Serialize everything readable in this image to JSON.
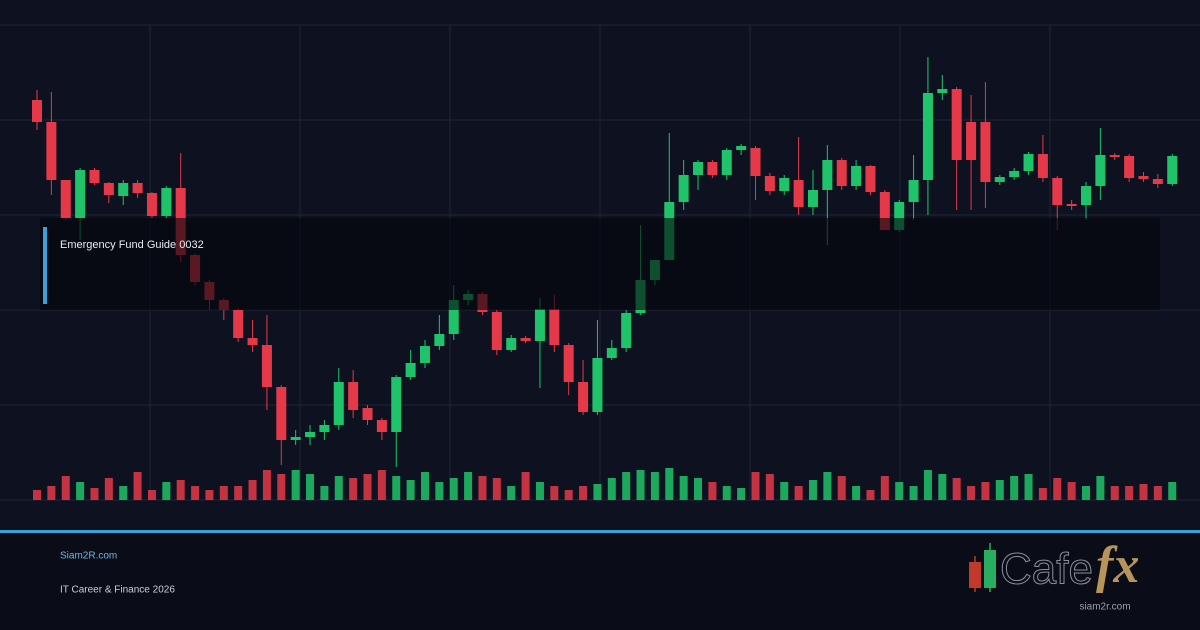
{
  "chart_data": {
    "type": "candlestick",
    "open": [
      400,
      378,
      320,
      282,
      330,
      317,
      304,
      317,
      307,
      284,
      312,
      245,
      218,
      200,
      190,
      162,
      155,
      113,
      60,
      63,
      68,
      75,
      118,
      92,
      80,
      68,
      123,
      137,
      154,
      166,
      200,
      206,
      188,
      150,
      162,
      159,
      191,
      155,
      118,
      88,
      142,
      152,
      187,
      220,
      240,
      298,
      325,
      338,
      325,
      350,
      352,
      324,
      309,
      320,
      293,
      310,
      340,
      314,
      334,
      308,
      270,
      298,
      320,
      407,
      411,
      378,
      378,
      318,
      323,
      329,
      346,
      322,
      296,
      295,
      314,
      345,
      344,
      324,
      321,
      316
    ],
    "high": [
      410,
      408,
      320,
      332,
      332,
      318,
      320,
      320,
      308,
      314,
      347,
      246,
      220,
      202,
      192,
      180,
      185,
      115,
      70,
      75,
      80,
      132,
      130,
      95,
      82,
      125,
      150,
      160,
      185,
      215,
      210,
      208,
      190,
      165,
      164,
      202,
      205,
      157,
      140,
      180,
      160,
      190,
      275,
      240,
      367,
      340,
      340,
      340,
      352,
      356,
      354,
      327,
      325,
      363,
      330,
      355,
      342,
      340,
      335,
      310,
      300,
      345,
      443,
      425,
      413,
      405,
      418,
      325,
      332,
      348,
      365,
      324,
      300,
      318,
      372,
      347,
      346,
      328,
      326,
      346
    ],
    "low": [
      370,
      305,
      280,
      260,
      315,
      297,
      295,
      302,
      282,
      282,
      238,
      215,
      190,
      180,
      158,
      148,
      90,
      35,
      55,
      55,
      60,
      70,
      82,
      75,
      60,
      33,
      120,
      132,
      150,
      160,
      195,
      185,
      145,
      148,
      157,
      112,
      148,
      105,
      85,
      85,
      140,
      148,
      185,
      215,
      240,
      290,
      310,
      322,
      320,
      345,
      300,
      305,
      305,
      285,
      285,
      255,
      310,
      310,
      305,
      270,
      268,
      280,
      285,
      400,
      290,
      290,
      292,
      315,
      320,
      325,
      318,
      270,
      290,
      280,
      300,
      340,
      318,
      318,
      312,
      314
    ],
    "close": [
      378,
      320,
      282,
      330,
      317,
      305,
      317,
      307,
      284,
      312,
      245,
      218,
      200,
      190,
      162,
      155,
      113,
      60,
      63,
      68,
      75,
      118,
      90,
      80,
      68,
      123,
      137,
      154,
      166,
      200,
      206,
      188,
      150,
      162,
      159,
      191,
      155,
      118,
      88,
      142,
      152,
      187,
      220,
      240,
      298,
      325,
      338,
      325,
      350,
      354,
      324,
      309,
      322,
      293,
      310,
      340,
      314,
      334,
      308,
      270,
      298,
      320,
      407,
      411,
      340,
      340,
      318,
      323,
      329,
      346,
      322,
      295,
      294,
      314,
      345,
      343,
      322,
      321,
      316,
      344
    ],
    "volume": [
      10,
      14,
      24,
      18,
      12,
      22,
      14,
      28,
      10,
      18,
      20,
      14,
      10,
      14,
      14,
      20,
      30,
      26,
      30,
      26,
      14,
      24,
      22,
      26,
      30,
      24,
      20,
      28,
      18,
      22,
      28,
      24,
      22,
      14,
      28,
      18,
      14,
      10,
      14,
      16,
      22,
      28,
      30,
      28,
      32,
      24,
      22,
      18,
      14,
      12,
      28,
      26,
      18,
      14,
      20,
      28,
      24,
      14,
      10,
      24,
      18,
      14,
      30,
      26,
      22,
      14,
      18,
      20,
      24,
      26,
      12,
      22,
      18,
      14,
      24,
      14,
      14,
      16,
      14,
      18
    ],
    "ylim": [
      0,
      475
    ],
    "yticks": [
      0,
      95,
      190,
      285,
      380,
      475
    ],
    "y2lim": [
      0,
      32
    ],
    "grid": true,
    "up_color": "#1fc46a",
    "down_color": "#e5394a"
  },
  "banner": {
    "title": "Emergency Fund Guide 0032"
  },
  "footer": {
    "site": "Siam2R.com",
    "tagline": "IT Career & Finance 2026"
  },
  "logo": {
    "word": "Cafe",
    "accent": "fx",
    "url": "siam2r.com"
  }
}
